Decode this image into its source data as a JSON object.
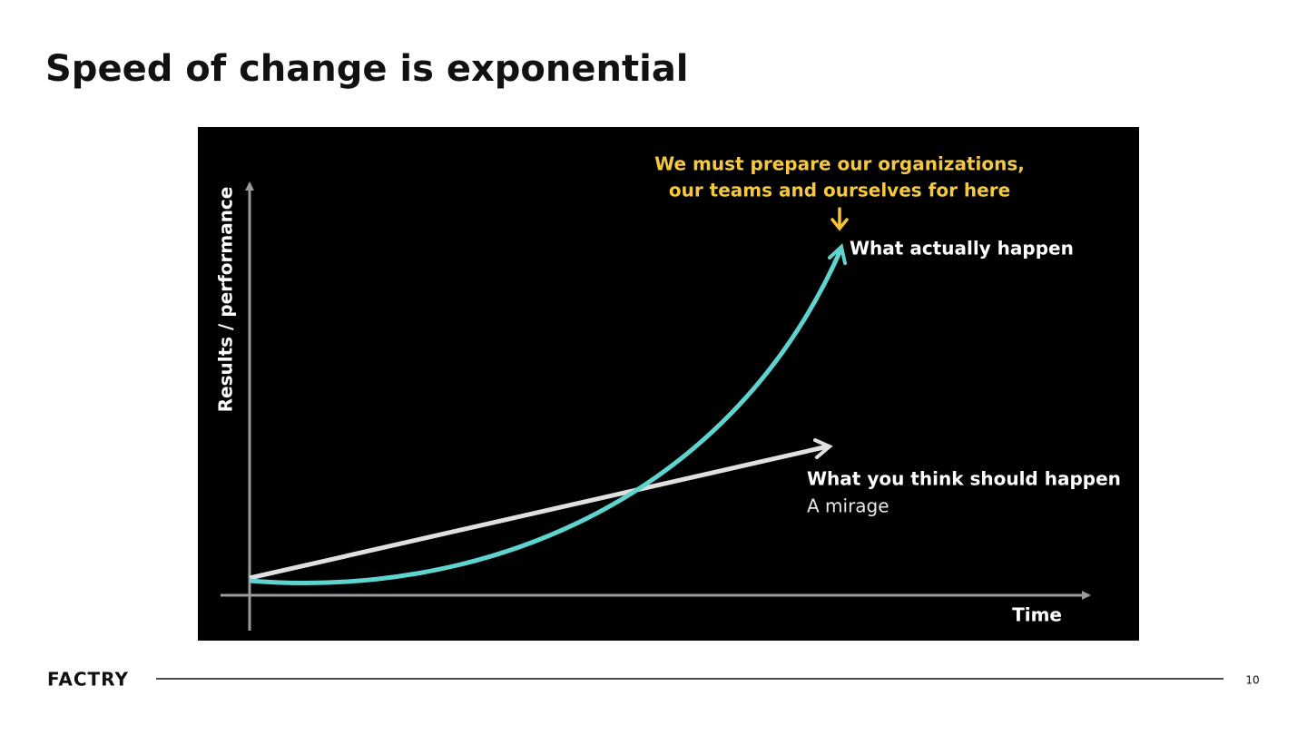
{
  "header": {
    "title": "Speed of change is exponential"
  },
  "diagram": {
    "y_axis_label": "Results / performance",
    "x_axis_label": "Time",
    "callout": [
      "We must prepare our organizations,",
      "our teams and ourselves for here"
    ],
    "exponential_label": "What actually happen",
    "linear_label": "What you think should happen",
    "linear_sublabel": "A mirage"
  },
  "footer": {
    "logo": "FACTRY",
    "page_number": "10"
  }
}
